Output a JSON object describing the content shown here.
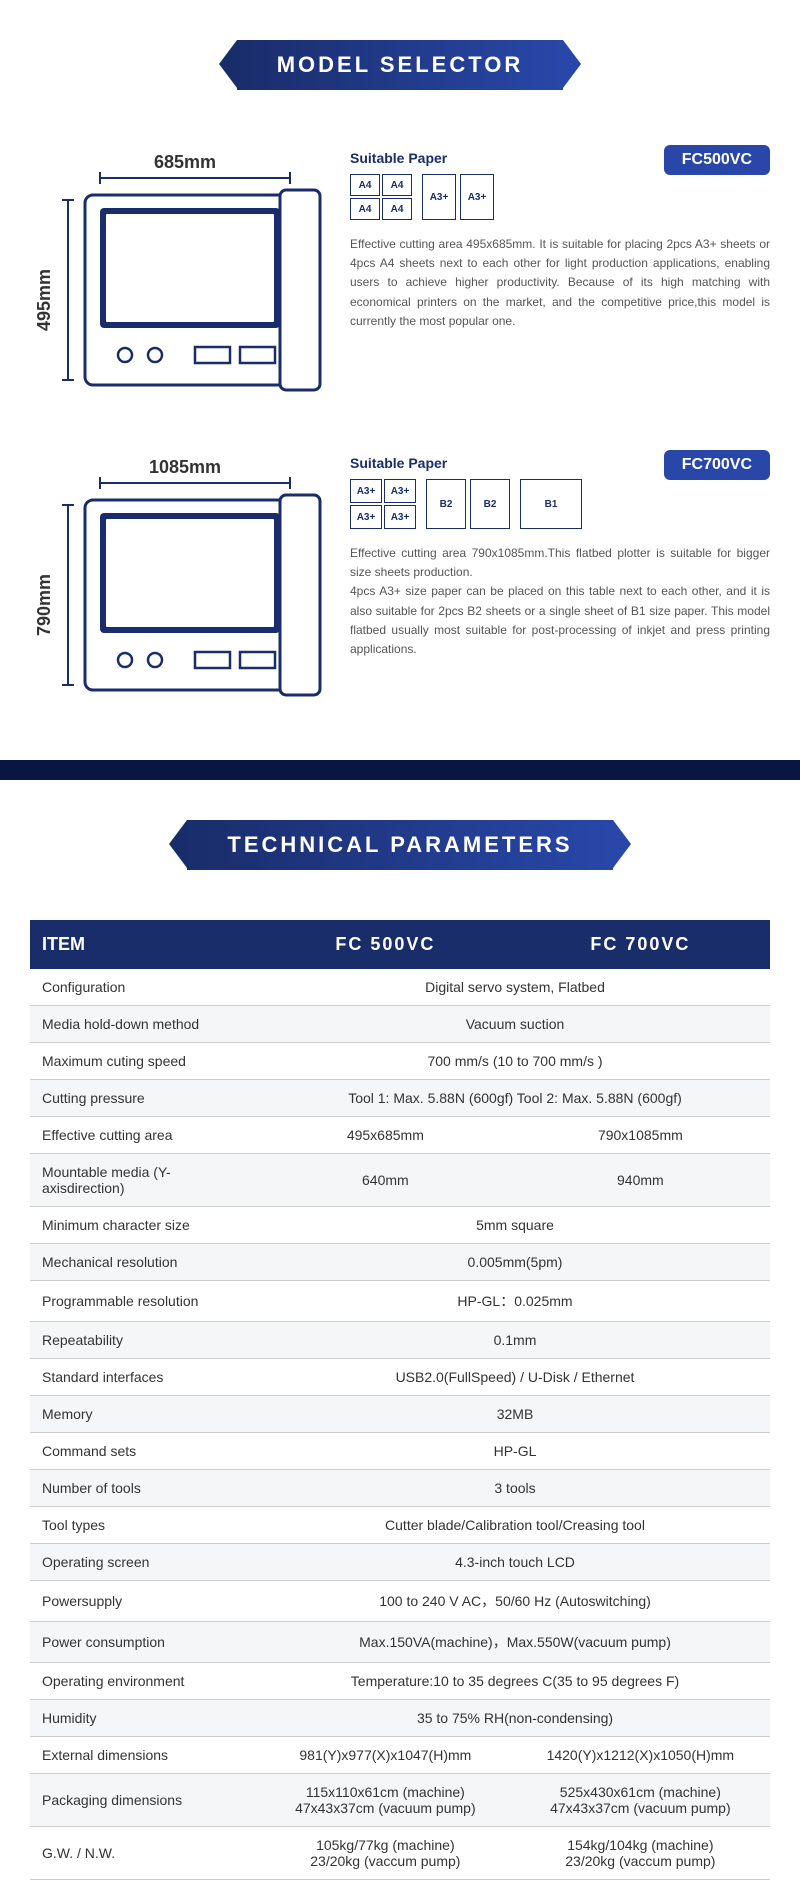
{
  "titles": {
    "model_selector": "MODEL SELECTOR",
    "technical_parameters": "TECHNICAL PARAMETERS"
  },
  "colors": {
    "primary": "#1a2d6b",
    "accent": "#2847a8",
    "dark_bar": "#0a1642",
    "text_muted": "#555"
  },
  "models": [
    {
      "badge": "FC500VC",
      "width_label": "685mm",
      "height_label": "495mm",
      "suitable_label": "Suitable Paper",
      "paper_groups": [
        {
          "type": "grid2x2",
          "size": "a4",
          "labels": [
            "A4",
            "A4",
            "A4",
            "A4"
          ]
        },
        {
          "type": "row",
          "size": "a3",
          "labels": [
            "A3+",
            "A3+"
          ]
        }
      ],
      "description": "Effective cutting area 495x685mm. It is suitable for placing 2pcs A3+ sheets or 4pcs A4 sheets next to each other for light production applications, enabling users to achieve higher productivity. Because of its high matching with economical printers on the market, and the competitive price,this model is currently the most popular one."
    },
    {
      "badge": "FC700VC",
      "width_label": "1085mm",
      "height_label": "790mm",
      "suitable_label": "Suitable Paper",
      "paper_groups": [
        {
          "type": "grid2x2",
          "size": "a3s",
          "labels": [
            "A3+",
            "A3+",
            "A3+",
            "A3+"
          ]
        },
        {
          "type": "row",
          "size": "b2",
          "labels": [
            "B2",
            "B2"
          ]
        },
        {
          "type": "row",
          "size": "b1",
          "labels": [
            "B1"
          ]
        }
      ],
      "description": "Effective cutting area 790x1085mm.This flatbed plotter is suitable for bigger size sheets production.\n4pcs A3+ size paper can be placed on this table next to each other, and it is also suitable for 2pcs B2 sheets or a single sheet of B1 size paper. This model flatbed usually most suitable for post-processing of inkjet and press printing applications."
    }
  ],
  "table": {
    "headers": [
      "ITEM",
      "FC 500VC",
      "FC 700VC"
    ],
    "rows": [
      {
        "item": "Configuration",
        "merged": "Digital servo system, Flatbed"
      },
      {
        "item": "Media hold-down method",
        "merged": "Vacuum suction"
      },
      {
        "item": "Maximum cuting speed",
        "merged": "700 mm/s (10 to 700 mm/s )"
      },
      {
        "item": "Cutting pressure",
        "merged": "Tool 1: Max. 5.88N (600gf)  Tool 2: Max. 5.88N (600gf)"
      },
      {
        "item": "Effective cutting area",
        "v1": "495x685mm",
        "v2": "790x1085mm"
      },
      {
        "item": "Mountable media (Y-axisdirection)",
        "v1": "640mm",
        "v2": "940mm"
      },
      {
        "item": "Minimum character size",
        "merged": "5mm square"
      },
      {
        "item": "Mechanical resolution",
        "merged": "0.005mm(5pm)"
      },
      {
        "item": "Programmable resolution",
        "merged": "HP-GL：0.025mm"
      },
      {
        "item": "Repeatability",
        "merged": "0.1mm"
      },
      {
        "item": "Standard interfaces",
        "merged": "USB2.0(FullSpeed) / U-Disk / Ethernet"
      },
      {
        "item": "Memory",
        "merged": "32MB"
      },
      {
        "item": "Command sets",
        "merged": "HP-GL"
      },
      {
        "item": "Number of tools",
        "merged": "3 tools"
      },
      {
        "item": "Tool types",
        "merged": "Cutter blade/Calibration tool/Creasing tool"
      },
      {
        "item": "Operating screen",
        "merged": "4.3-inch touch LCD"
      },
      {
        "item": "Powersupply",
        "merged": "100 to 240 V AC，50/60 Hz (Autoswitching)"
      },
      {
        "item": "Power consumption",
        "merged": "Max.150VA(machine)，Max.550W(vacuum pump)"
      },
      {
        "item": "Operating environment",
        "merged": "Temperature:10 to 35 degrees C(35 to 95 degrees F)"
      },
      {
        "item": "Humidity",
        "merged": "35 to 75% RH(non-condensing)"
      },
      {
        "item": "External dimensions",
        "v1": "981(Y)x977(X)x1047(H)mm",
        "v2": "1420(Y)x1212(X)x1050(H)mm"
      },
      {
        "item": "Packaging dimensions",
        "v1": "115x110x61cm (machine)\n47x43x37cm (vacuum pump)",
        "v2": "525x430x61cm (machine)\n47x43x37cm (vacuum pump)"
      },
      {
        "item": "G.W. / N.W.",
        "v1": "105kg/77kg (machine)\n23/20kg (vaccum pump)",
        "v2": "154kg/104kg (machine)\n23/20kg (vaccum pump)"
      }
    ]
  }
}
